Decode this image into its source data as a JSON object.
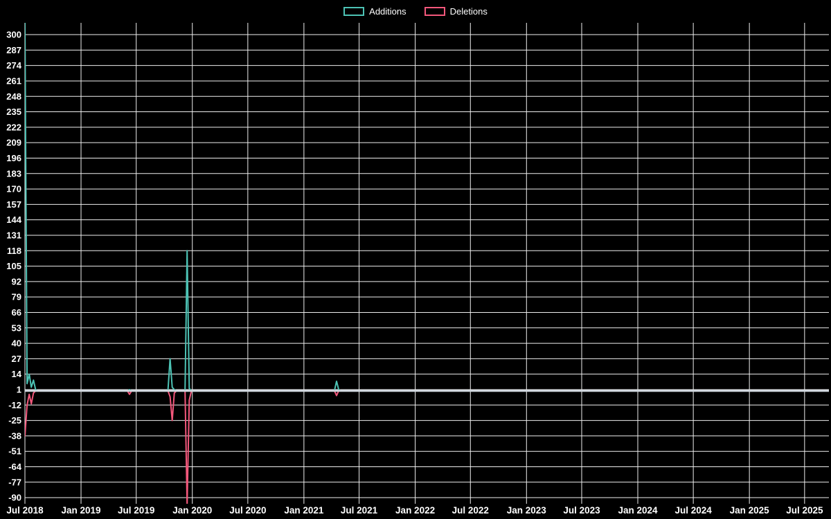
{
  "colors": {
    "background": "#000000",
    "grid": "#efefef",
    "zero_line": "#cfd6dd",
    "text": "#ffffff",
    "additions": "#4dc3b5",
    "deletions": "#f4587c"
  },
  "chart_data": {
    "type": "line",
    "title": "",
    "xlabel": "",
    "ylabel": "",
    "legend_position": "top-center",
    "grid": true,
    "x_axis": {
      "start": "2018-07-01",
      "end": "2025-09-21",
      "tick_labels": [
        "Jul 2018",
        "Jan 2019",
        "Jul 2019",
        "Jan 2020",
        "Jul 2020",
        "Jan 2021",
        "Jul 2021",
        "Jan 2022",
        "Jul 2022",
        "Jan 2023",
        "Jul 2023",
        "Jan 2024",
        "Jul 2024",
        "Jan 2025",
        "Jul 2025"
      ]
    },
    "y_axis": {
      "tick_values": [
        300,
        287,
        274,
        261,
        248,
        235,
        222,
        209,
        196,
        183,
        170,
        157,
        144,
        131,
        118,
        105,
        92,
        79,
        66,
        53,
        40,
        27,
        14,
        1,
        -12,
        -25,
        -38,
        -51,
        -64,
        -77,
        -90
      ],
      "min": -97,
      "max": 312
    },
    "zero_baseline": true,
    "series": [
      {
        "name": "Additions",
        "color": "#4dc3b5",
        "default_value": 0,
        "points": [
          {
            "date": "2018-07-01",
            "value": 310
          },
          {
            "date": "2018-07-08",
            "value": 6
          },
          {
            "date": "2018-07-15",
            "value": 14
          },
          {
            "date": "2018-07-22",
            "value": 3
          },
          {
            "date": "2018-07-29",
            "value": 9
          },
          {
            "date": "2018-08-05",
            "value": 1
          },
          {
            "date": "2019-06-09",
            "value": 1
          },
          {
            "date": "2019-10-20",
            "value": 27
          },
          {
            "date": "2019-10-27",
            "value": 3
          },
          {
            "date": "2019-11-03",
            "value": 1
          },
          {
            "date": "2019-12-15",
            "value": 118
          },
          {
            "date": "2019-12-22",
            "value": 2
          },
          {
            "date": "2021-04-18",
            "value": 8
          },
          {
            "date": "2021-04-25",
            "value": 1
          }
        ]
      },
      {
        "name": "Deletions",
        "color": "#f4587c",
        "default_value": 0,
        "points": [
          {
            "date": "2018-07-01",
            "value": -38
          },
          {
            "date": "2018-07-08",
            "value": -12
          },
          {
            "date": "2018-07-15",
            "value": -3
          },
          {
            "date": "2018-07-22",
            "value": -11
          },
          {
            "date": "2018-07-29",
            "value": -2
          },
          {
            "date": "2019-06-09",
            "value": -3
          },
          {
            "date": "2019-10-20",
            "value": -5
          },
          {
            "date": "2019-10-27",
            "value": -25
          },
          {
            "date": "2019-11-03",
            "value": -2
          },
          {
            "date": "2019-12-15",
            "value": -96
          },
          {
            "date": "2019-12-22",
            "value": -8
          },
          {
            "date": "2021-04-18",
            "value": -4
          }
        ]
      }
    ]
  }
}
